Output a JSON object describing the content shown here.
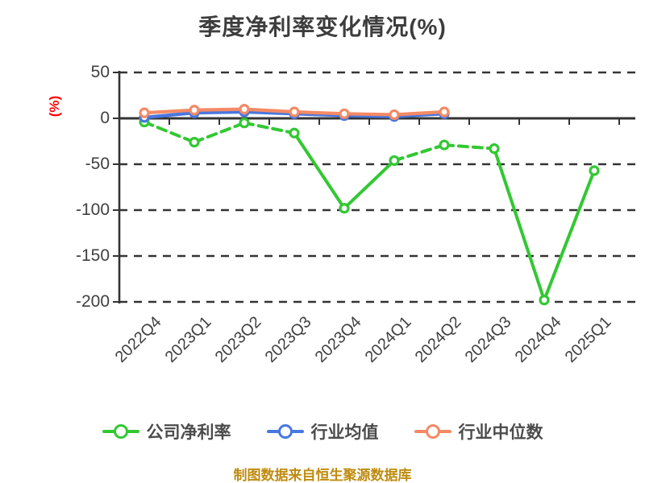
{
  "title": "季度净利率变化情况(%)",
  "y_axis_unit": "(%)",
  "caption": "制图数据来自恒生聚源数据库",
  "colors": {
    "title_text": "#3d3d3d",
    "axis_line": "#333333",
    "gridline": "#343434",
    "tick_text": "#404040",
    "y_unit_red": "#ff0000",
    "caption_gold": "#bf8b0e",
    "legend_text": "#4b4b4b",
    "series_green": "#32c832",
    "series_blue": "#4877e0",
    "series_orange": "#f48a65",
    "marker_fill": "#ffffff"
  },
  "chart_data": {
    "type": "line",
    "title": "季度净利率变化情况(%)",
    "xlabel": "",
    "ylabel": "(%)",
    "categories": [
      "2022Q4",
      "2023Q1",
      "2023Q2",
      "2023Q3",
      "2023Q4",
      "2024Q1",
      "2024Q2",
      "2024Q3",
      "2024Q4",
      "2025Q1"
    ],
    "yticks": [
      50,
      0,
      -50,
      -100,
      -150,
      -200
    ],
    "ylim": [
      -210,
      55
    ],
    "grid": "horizontal-dashed",
    "legend_position": "bottom",
    "series": [
      {
        "name": "公司净利率",
        "color": "#32c832",
        "marker": "open-circle",
        "line_style": "dash-solid-mixed",
        "dash_segments": [
          true,
          true,
          true,
          false,
          false,
          true,
          true,
          false,
          false
        ],
        "values": [
          -4,
          -26,
          -5,
          -16,
          -98,
          -46,
          -29,
          -33,
          -198,
          -57
        ]
      },
      {
        "name": "行业均值",
        "color": "#4877e0",
        "marker": "open-circle",
        "line_style": "solid",
        "values": [
          1,
          6,
          7,
          5,
          3,
          2,
          5
        ]
      },
      {
        "name": "行业中位数",
        "color": "#f48a65",
        "marker": "open-circle",
        "line_style": "solid",
        "values": [
          6,
          9,
          10,
          7,
          5,
          4,
          7
        ]
      }
    ]
  }
}
